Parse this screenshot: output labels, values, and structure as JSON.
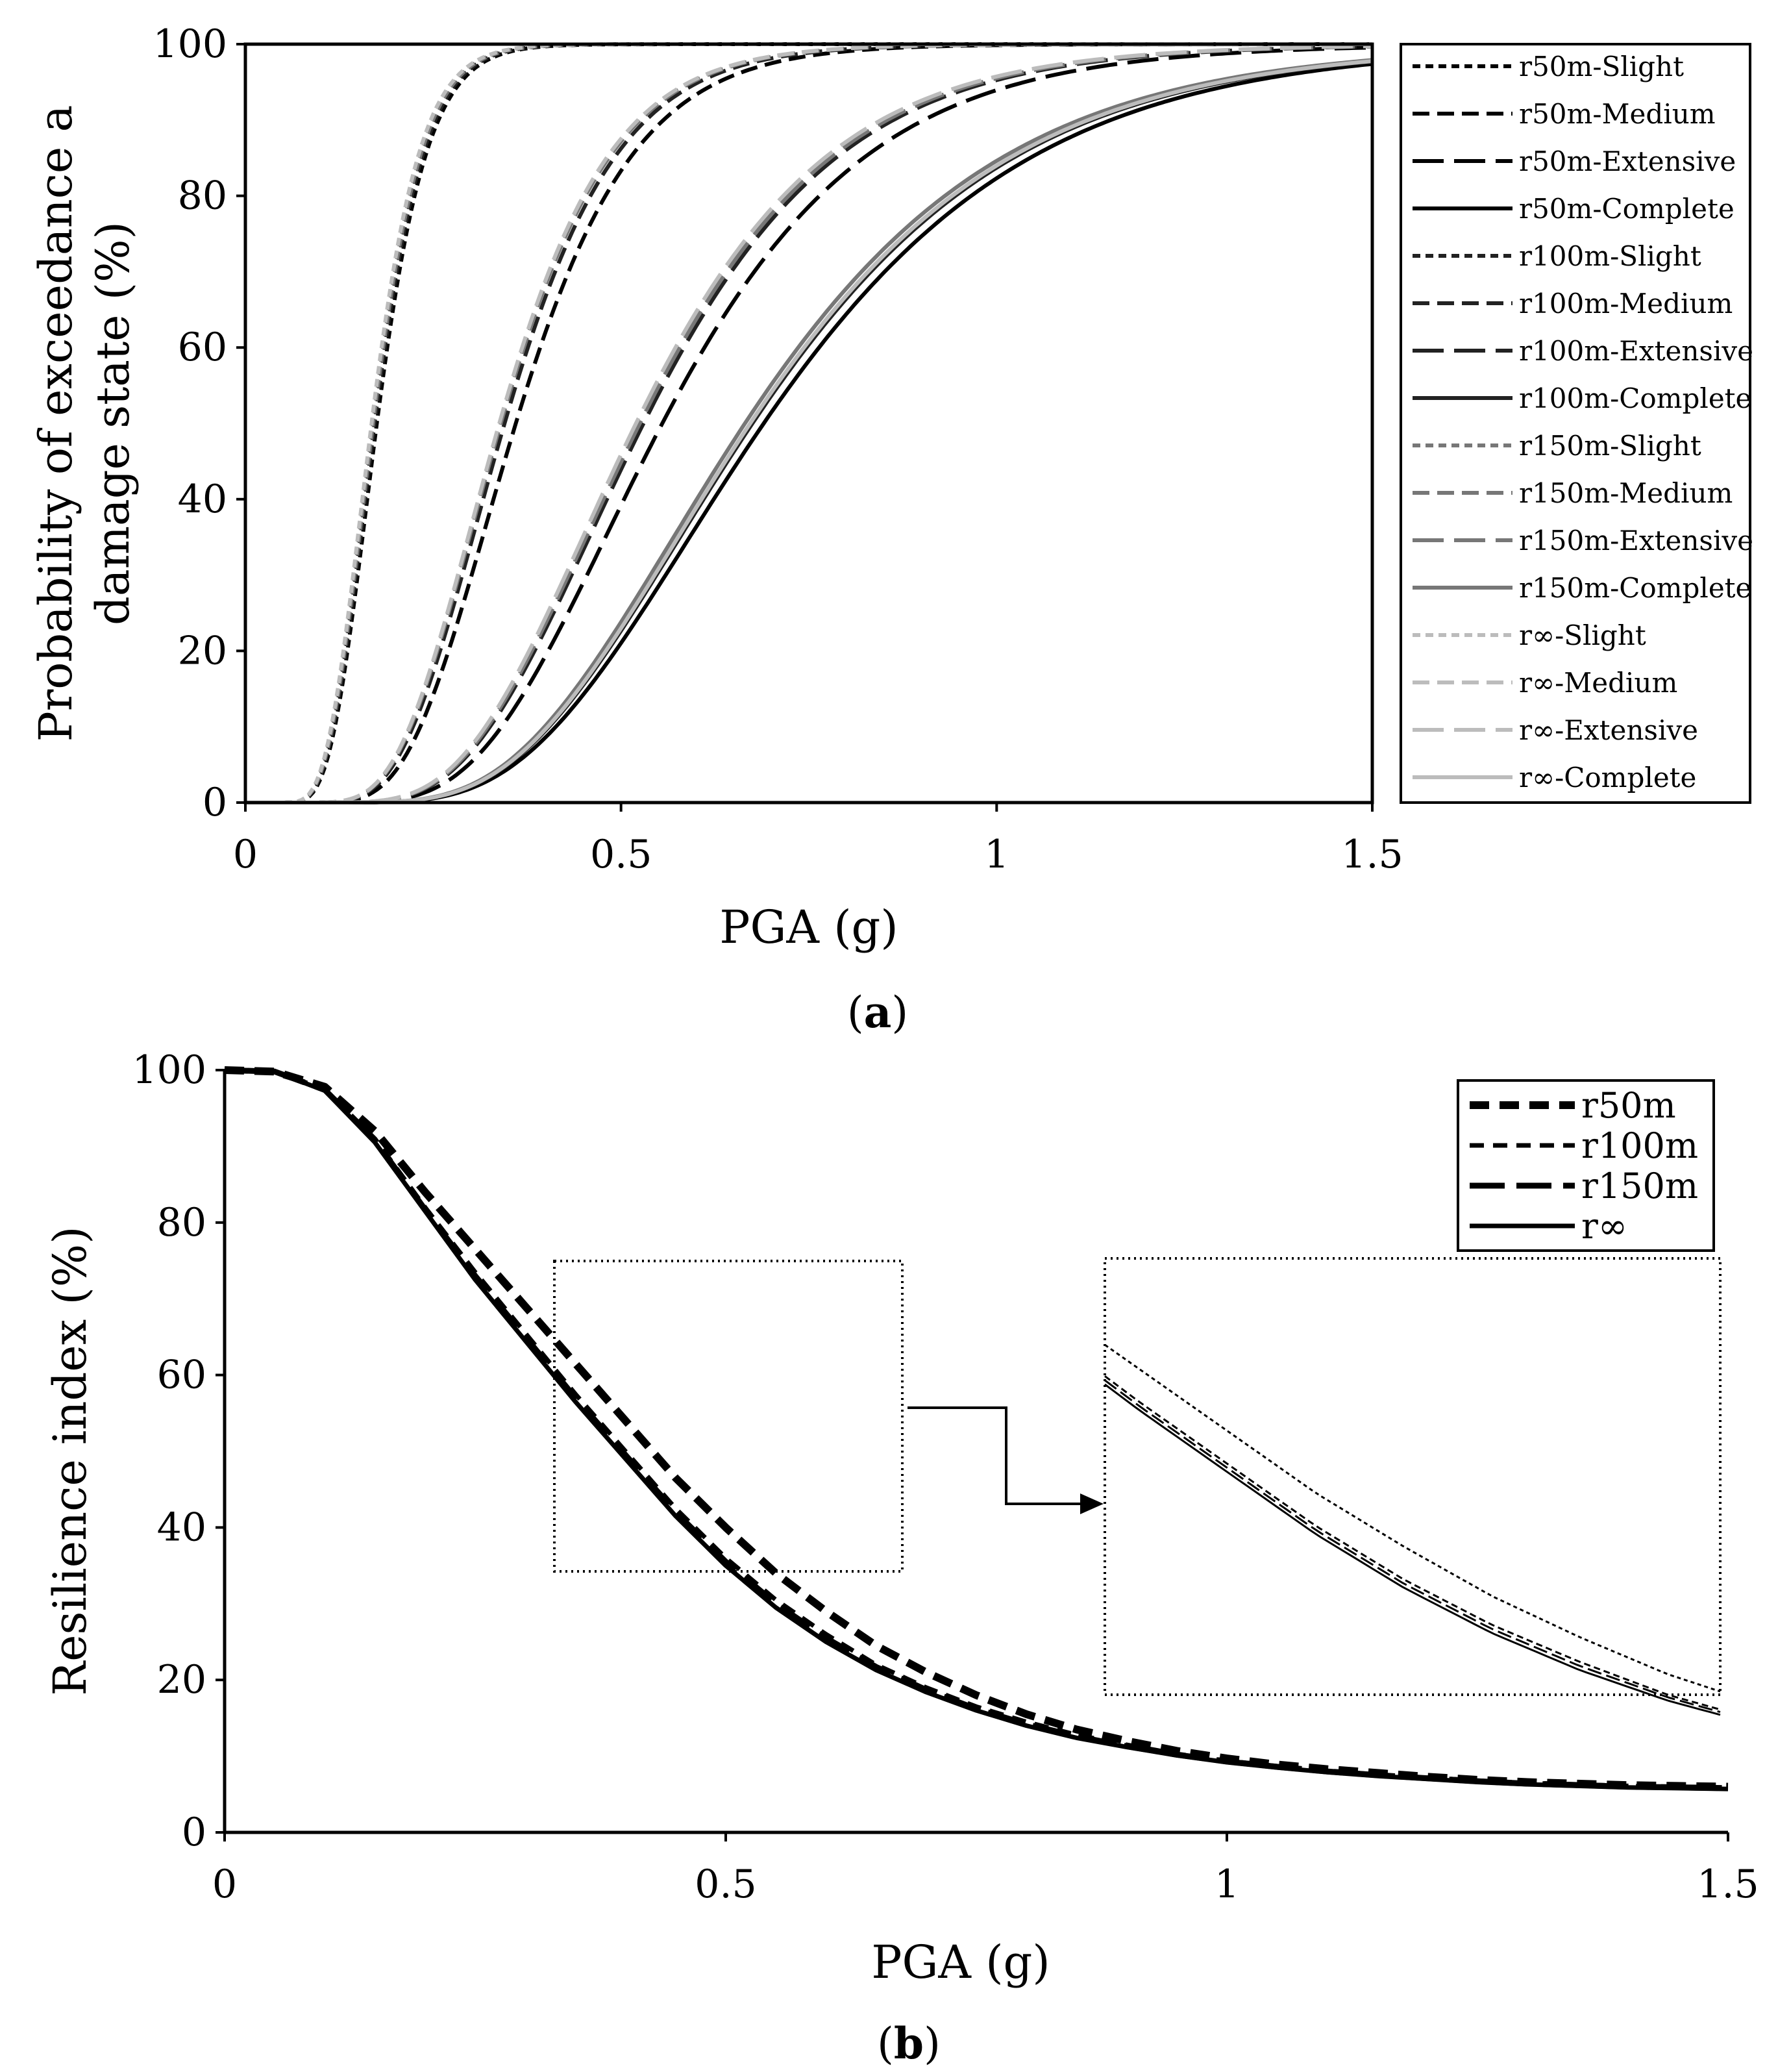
{
  "chart_data": [
    {
      "panel": "(a)",
      "caption_letter": "a",
      "type": "line",
      "xlabel": "PGA (g)",
      "ylabel_lines": [
        "Probability of exceedance a",
        "damage state (%)"
      ],
      "xlim": [
        0,
        1.5
      ],
      "ylim": [
        0,
        100
      ],
      "xticks": [
        0,
        0.5,
        1,
        1.5
      ],
      "xtick_labels": [
        "0",
        "0.5",
        "1",
        "1.5"
      ],
      "yticks": [
        0,
        20,
        40,
        60,
        80,
        100
      ],
      "ytick_labels": [
        "0",
        "20",
        "40",
        "60",
        "80",
        "100"
      ],
      "grid": false,
      "legend_position": "right",
      "style_key": {
        "colors": {
          "r50m": "#000000",
          "r100m": "#222222",
          "r150m": "#777777",
          "r∞": "#bcbcbc"
        },
        "dashes": {
          "Slight": "short-dash",
          "Medium": "medium-dash",
          "Extensive": "long-dash",
          "Complete": "solid"
        }
      },
      "series": [
        {
          "name": "r50m-Slight",
          "group": "r50m",
          "state": "Slight",
          "median": 0.175,
          "beta": 0.3
        },
        {
          "name": "r50m-Medium",
          "group": "r50m",
          "state": "Medium",
          "median": 0.36,
          "beta": 0.34
        },
        {
          "name": "r50m-Extensive",
          "group": "r50m",
          "state": "Extensive",
          "median": 0.555,
          "beta": 0.38
        },
        {
          "name": "r50m-Complete",
          "group": "r50m",
          "state": "Complete",
          "median": 0.69,
          "beta": 0.4
        },
        {
          "name": "r100m-Slight",
          "group": "r100m",
          "state": "Slight",
          "median": 0.172,
          "beta": 0.3
        },
        {
          "name": "r100m-Medium",
          "group": "r100m",
          "state": "Medium",
          "median": 0.345,
          "beta": 0.34
        },
        {
          "name": "r100m-Extensive",
          "group": "r100m",
          "state": "Extensive",
          "median": 0.53,
          "beta": 0.38
        },
        {
          "name": "r100m-Complete",
          "group": "r100m",
          "state": "Complete",
          "median": 0.675,
          "beta": 0.4
        },
        {
          "name": "r150m-Slight",
          "group": "r150m",
          "state": "Slight",
          "median": 0.17,
          "beta": 0.3
        },
        {
          "name": "r150m-Medium",
          "group": "r150m",
          "state": "Medium",
          "median": 0.34,
          "beta": 0.34
        },
        {
          "name": "r150m-Extensive",
          "group": "r150m",
          "state": "Extensive",
          "median": 0.525,
          "beta": 0.38
        },
        {
          "name": "r150m-Complete",
          "group": "r150m",
          "state": "Complete",
          "median": 0.665,
          "beta": 0.4
        },
        {
          "name": "r∞-Slight",
          "group": "r∞",
          "state": "Slight",
          "median": 0.168,
          "beta": 0.3
        },
        {
          "name": "r∞-Medium",
          "group": "r∞",
          "state": "Medium",
          "median": 0.338,
          "beta": 0.34
        },
        {
          "name": "r∞-Extensive",
          "group": "r∞",
          "state": "Extensive",
          "median": 0.52,
          "beta": 0.38
        },
        {
          "name": "r∞-Complete",
          "group": "r∞",
          "state": "Complete",
          "median": 0.672,
          "beta": 0.4
        }
      ]
    },
    {
      "panel": "(b)",
      "caption_letter": "b",
      "type": "line",
      "xlabel": "PGA (g)",
      "ylabel": "Resilience index (%)",
      "xlim": [
        0,
        1.5
      ],
      "ylim": [
        0,
        100
      ],
      "xticks": [
        0,
        0.5,
        1,
        1.5
      ],
      "xtick_labels": [
        "0",
        "0.5",
        "1",
        "1.5"
      ],
      "yticks": [
        0,
        20,
        40,
        60,
        80,
        100
      ],
      "ytick_labels": [
        "0",
        "20",
        "40",
        "60",
        "80",
        "100"
      ],
      "grid": false,
      "legend_position": "top-right",
      "x": [
        0,
        0.05,
        0.1,
        0.15,
        0.2,
        0.25,
        0.3,
        0.35,
        0.4,
        0.45,
        0.5,
        0.55,
        0.6,
        0.65,
        0.7,
        0.75,
        0.8,
        0.85,
        0.9,
        0.95,
        1.0,
        1.05,
        1.1,
        1.15,
        1.2,
        1.25,
        1.3,
        1.35,
        1.4,
        1.45,
        1.5
      ],
      "series": [
        {
          "name": "r50m",
          "dash": "thick-dash",
          "values": [
            100,
            99.8,
            97.8,
            92,
            84,
            76.5,
            69,
            61.5,
            54,
            46.5,
            40,
            34,
            29,
            24.5,
            21,
            18,
            15.5,
            13.5,
            12,
            10.7,
            9.7,
            8.9,
            8.3,
            7.8,
            7.3,
            6.9,
            6.6,
            6.4,
            6.2,
            6.1,
            6.0
          ]
        },
        {
          "name": "r100m",
          "dash": "medium-dash",
          "values": [
            100,
            99.8,
            97.5,
            91,
            82,
            73.5,
            65.5,
            57.5,
            50,
            42.5,
            36,
            30.5,
            26,
            22,
            19,
            16.5,
            14.5,
            12.8,
            11.5,
            10.3,
            9.4,
            8.7,
            8.1,
            7.6,
            7.2,
            6.8,
            6.5,
            6.3,
            6.1,
            6.0,
            5.9
          ]
        },
        {
          "name": "r150m",
          "dash": "long-dash",
          "values": [
            100,
            99.8,
            97.4,
            90.8,
            81.7,
            73,
            65,
            57,
            49.5,
            42,
            35.5,
            30,
            25.5,
            21.7,
            18.7,
            16.2,
            14.2,
            12.6,
            11.3,
            10.2,
            9.3,
            8.6,
            8.0,
            7.5,
            7.1,
            6.7,
            6.4,
            6.2,
            6.0,
            5.9,
            5.8
          ]
        },
        {
          "name": "r∞",
          "dash": "solid",
          "values": [
            100,
            99.8,
            97.3,
            90.5,
            81.5,
            72.5,
            64.5,
            56.5,
            49,
            41.5,
            35,
            29.5,
            25,
            21.3,
            18.4,
            16,
            14,
            12.4,
            11.2,
            10.1,
            9.2,
            8.5,
            7.9,
            7.4,
            7.0,
            6.6,
            6.3,
            6.1,
            5.9,
            5.8,
            5.7
          ]
        }
      ]
    }
  ]
}
